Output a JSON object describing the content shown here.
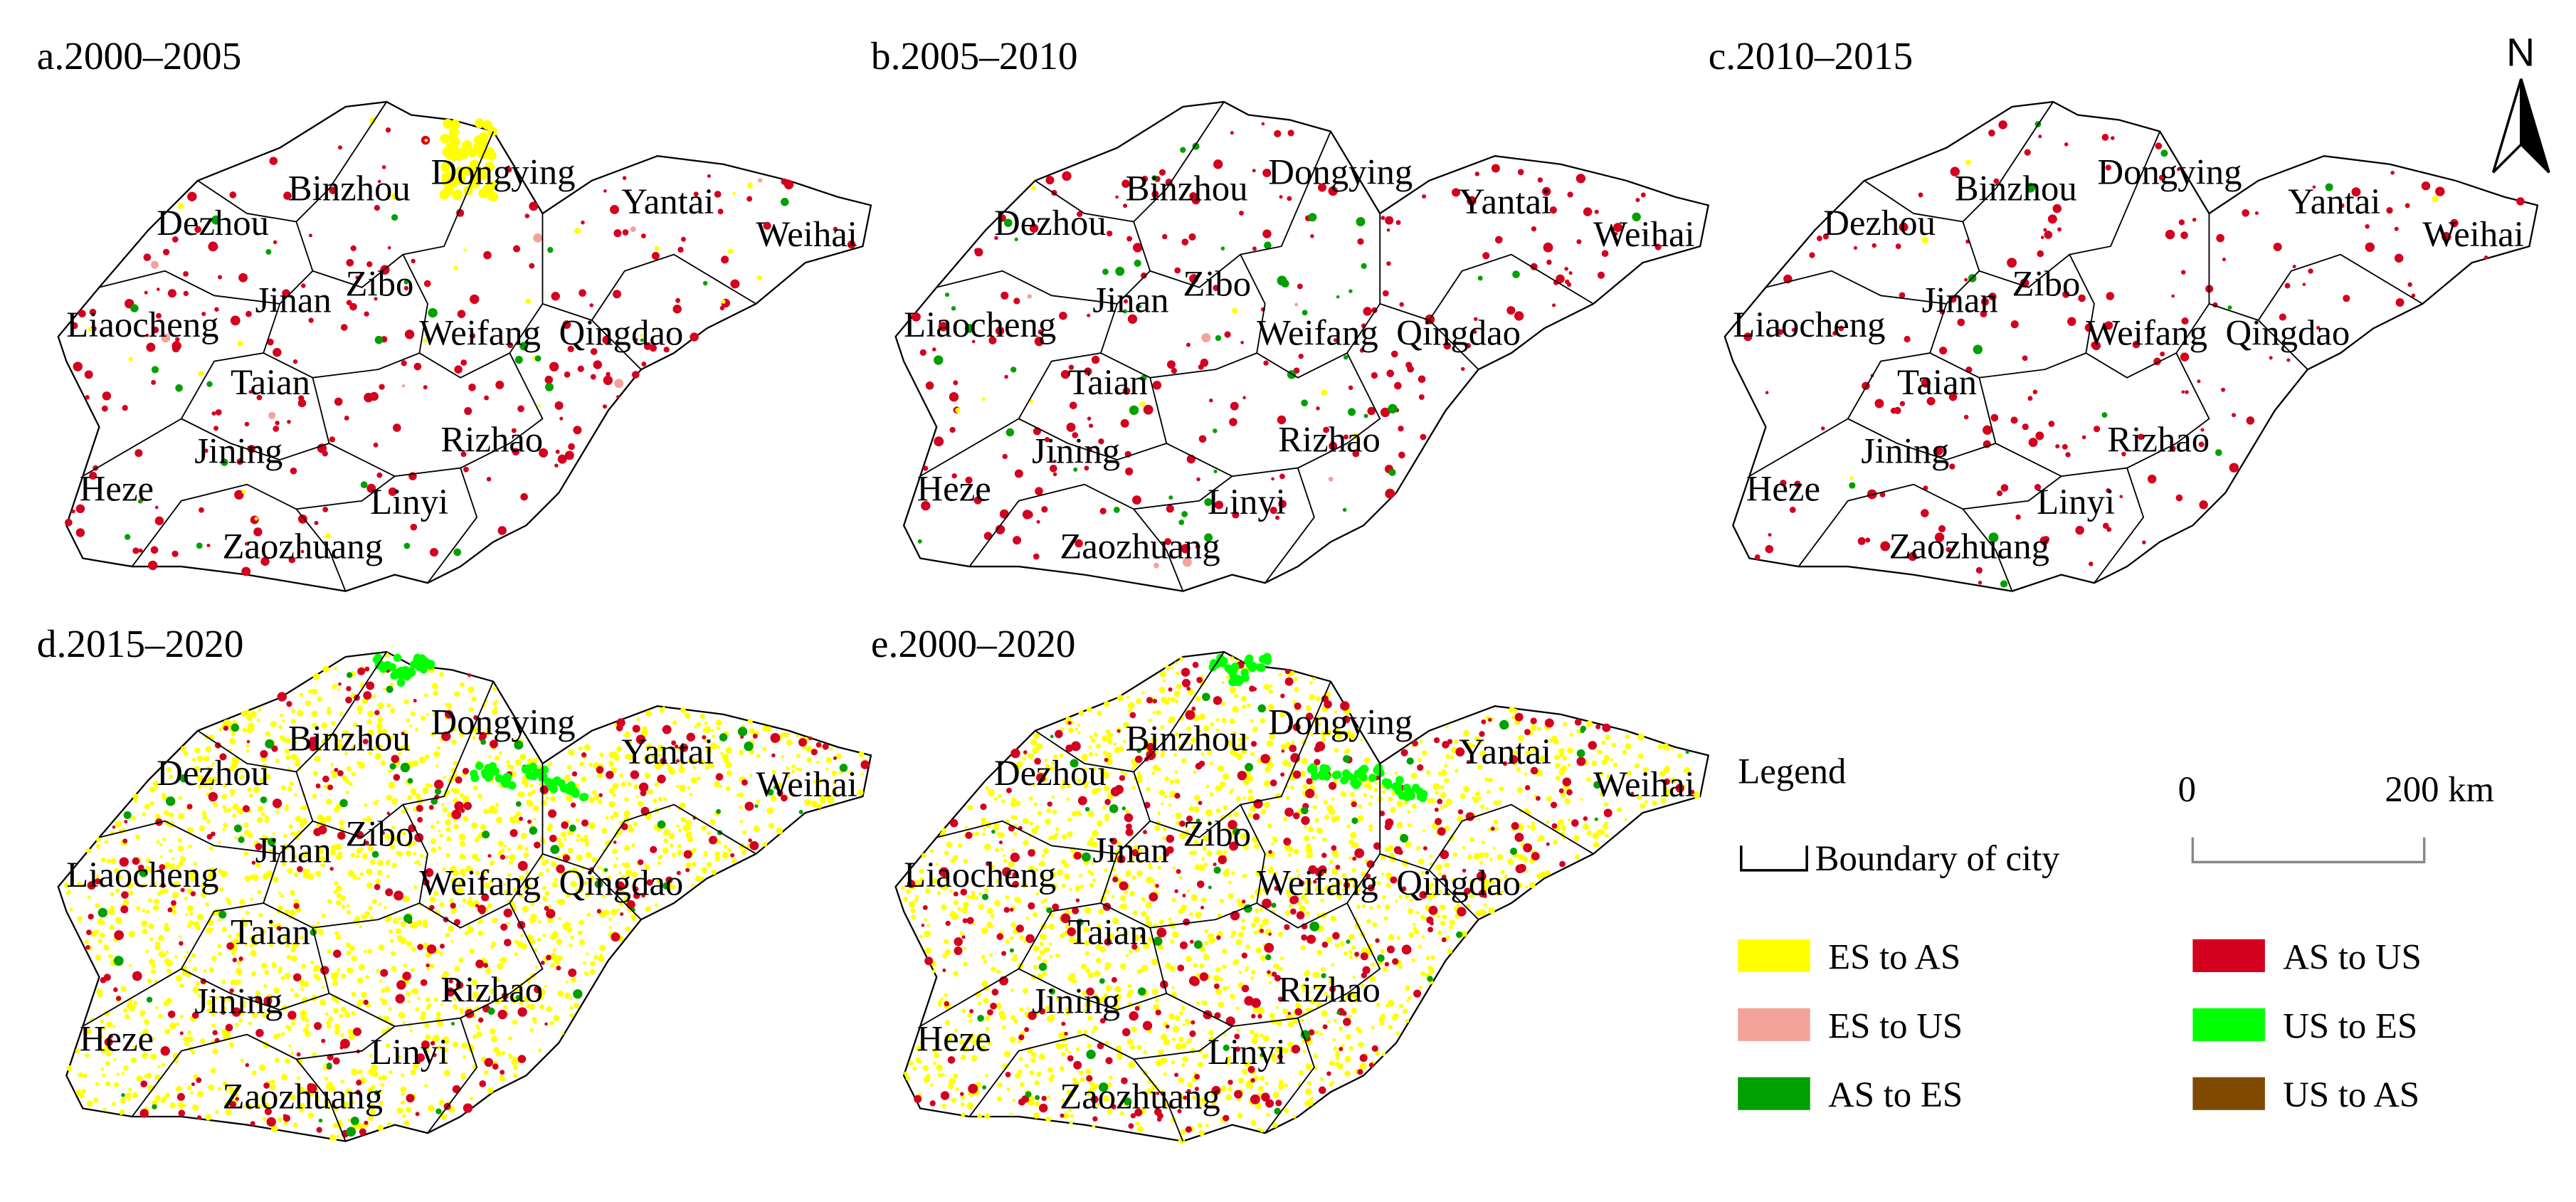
{
  "panels": [
    {
      "title": "a.2000–2005"
    },
    {
      "title": "b.2005–2010"
    },
    {
      "title": "c.2010–2015"
    },
    {
      "title": "d.2015–2020"
    },
    {
      "title": "e.2000–2020"
    }
  ],
  "cities": [
    "Dongying",
    "Binzhou",
    "Dezhou",
    "Yantai",
    "Weihai",
    "Liaocheng",
    "Jinan",
    "Zibo",
    "Weifang",
    "Qingdao",
    "Taian",
    "Jining",
    "Rizhao",
    "Heze",
    "Linyi",
    "Zaozhuang"
  ],
  "north": "N",
  "legend": {
    "title": "Legend",
    "boundary": "Boundary of city",
    "items": [
      {
        "name": "ES to AS",
        "color": "#ffff00"
      },
      {
        "name": "ES to US",
        "color": "#f4a39a"
      },
      {
        "name": "AS to ES",
        "color": "#00a000"
      },
      {
        "name": "AS to US",
        "color": "#d4001f"
      },
      {
        "name": "US to ES",
        "color": "#00ff00"
      },
      {
        "name": "US to AS",
        "color": "#7f4a00"
      }
    ]
  },
  "scale_bar": {
    "start": "0",
    "end": "200 km"
  }
}
